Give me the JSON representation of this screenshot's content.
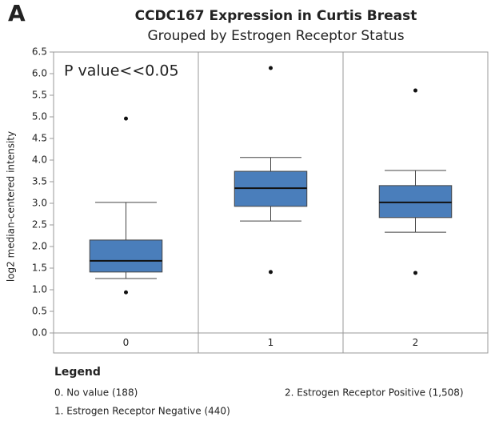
{
  "chart_data": {
    "type": "box",
    "panel_label": "A",
    "title": "CCDC167 Expression in Curtis Breast",
    "subtitle": "Grouped by Estrogen Receptor Status",
    "ylabel": "log2 median-centered intensity",
    "annotation": "P value<<0.05",
    "categories": [
      "0",
      "1",
      "2"
    ],
    "color": "#4a7ebb",
    "boxes": [
      {
        "min": 1.26,
        "q1": 1.41,
        "median": 1.67,
        "q3": 2.15,
        "max": 3.02,
        "outliers": [
          4.96,
          0.94
        ]
      },
      {
        "min": 2.59,
        "q1": 2.93,
        "median": 3.35,
        "q3": 3.74,
        "max": 4.06,
        "outliers": [
          6.13,
          1.41
        ]
      },
      {
        "min": 2.33,
        "q1": 2.67,
        "median": 3.02,
        "q3": 3.41,
        "max": 3.76,
        "outliers": [
          5.61,
          1.39
        ]
      }
    ],
    "ylim": [
      0,
      6.5
    ],
    "yticks": [
      {
        "value": 0,
        "label": "0.0"
      },
      0.5,
      {
        "value": 1,
        "label": "1.0"
      },
      1.5,
      {
        "value": 2,
        "label": "2.0"
      },
      2.5,
      {
        "value": 3,
        "label": "3.0"
      },
      3.5,
      {
        "value": 4,
        "label": "4.0"
      },
      4.5,
      {
        "value": 5,
        "label": "5.0"
      },
      5.5,
      {
        "value": 6,
        "label": "6.0"
      },
      6.5
    ],
    "legend_title": "Legend",
    "legend_entries": [
      "0. No value (188)",
      "1. Estrogen Receptor Negative (440)",
      "2. Estrogen Receptor Positive (1,508)"
    ]
  }
}
